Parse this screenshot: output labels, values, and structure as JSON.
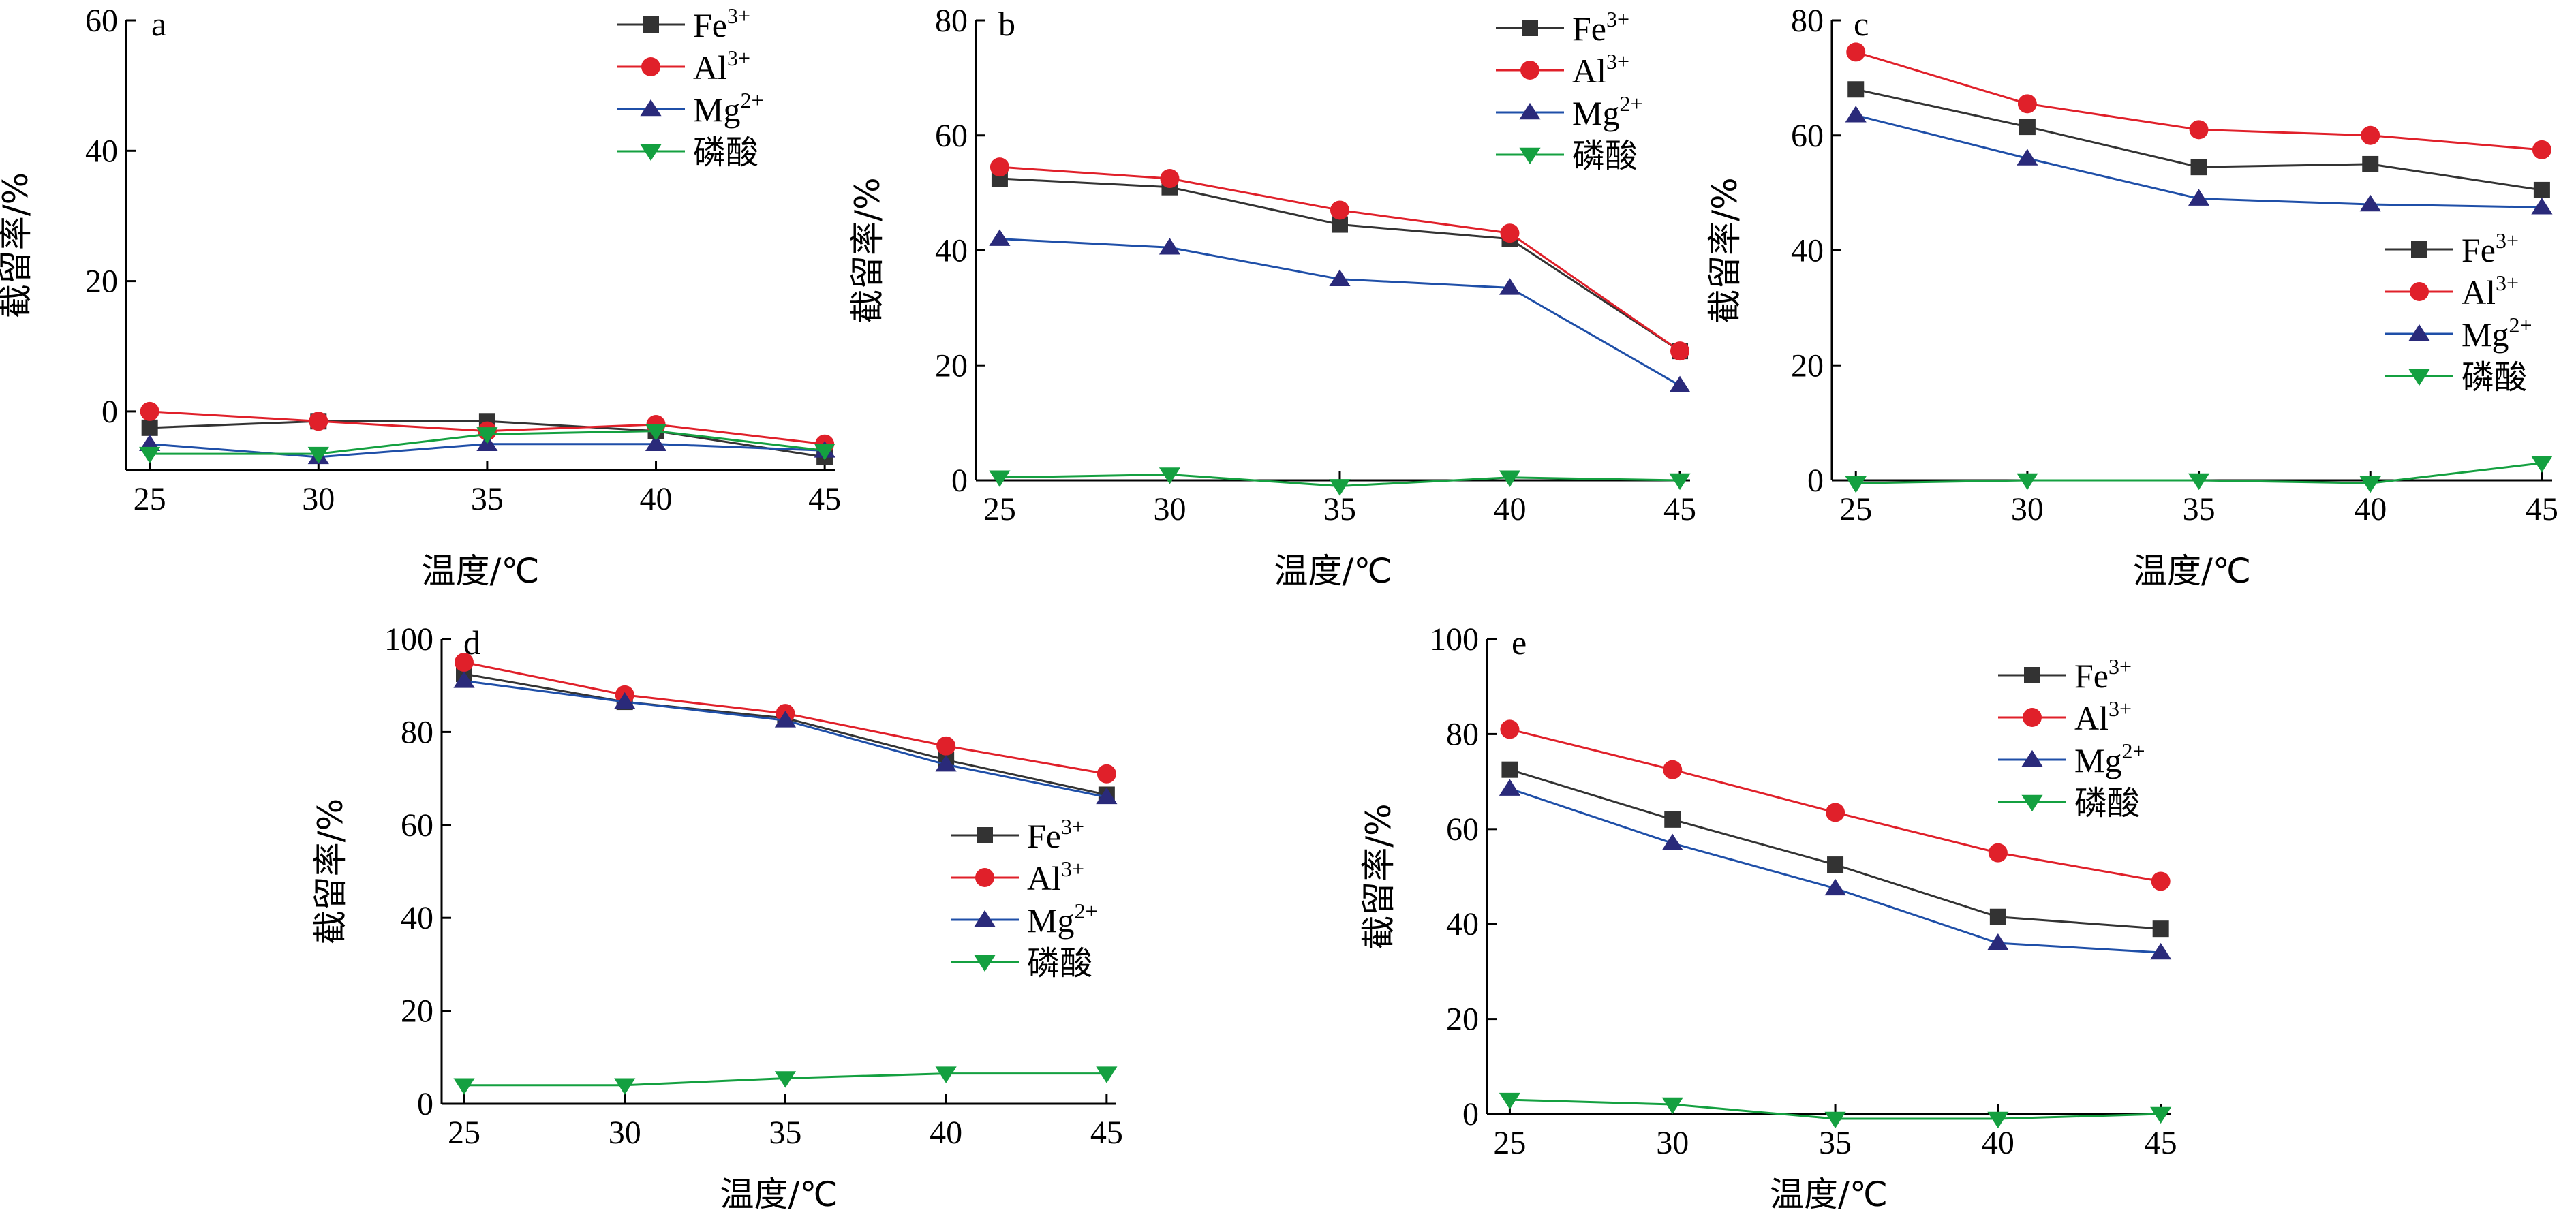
{
  "colors": {
    "Fe": "#333333",
    "Al": "#e0202a",
    "Mg": "#1f4fa8",
    "P": "#14a040",
    "MgMarker": "#2a2a7a",
    "PMarker": "#14a040"
  },
  "legend_labels": {
    "Fe": {
      "base": "Fe",
      "sup": "3+"
    },
    "Al": {
      "base": "Al",
      "sup": "3+"
    },
    "Mg": {
      "base": "Mg",
      "sup": "2+"
    },
    "P": {
      "base": "磷酸",
      "sup": ""
    }
  },
  "chart_data": [
    {
      "panel": "a",
      "type": "line",
      "x": [
        25,
        30,
        35,
        40,
        45
      ],
      "xlabel": "温度/℃",
      "ylabel": "截留率/%",
      "ylim": [
        -9,
        60
      ],
      "yticks": [
        0,
        20,
        40,
        60
      ],
      "yticklabels": [
        "0",
        "20",
        "40",
        "60"
      ],
      "xticklabels": [
        "25",
        "30",
        "35",
        "40",
        "45"
      ],
      "legend_position": "top-right",
      "series": [
        {
          "key": "Fe",
          "marker": "square",
          "values": [
            -2.5,
            -1.5,
            -1.5,
            -3,
            -7
          ]
        },
        {
          "key": "Al",
          "marker": "circle",
          "values": [
            0,
            -1.5,
            -3,
            -2,
            -5
          ]
        },
        {
          "key": "Mg",
          "marker": "triangle-up",
          "values": [
            -5,
            -7,
            -5,
            -5,
            -6
          ]
        },
        {
          "key": "P",
          "marker": "triangle-down",
          "values": [
            -6.5,
            -6.5,
            -3.5,
            -3,
            -6
          ]
        }
      ]
    },
    {
      "panel": "b",
      "type": "line",
      "x": [
        25,
        30,
        35,
        40,
        45
      ],
      "xlabel": "温度/℃",
      "ylabel": "截留率/%",
      "ylim": [
        0,
        80
      ],
      "yticks": [
        0,
        20,
        40,
        60,
        80
      ],
      "yticklabels": [
        "0",
        "20",
        "40",
        "60",
        "80"
      ],
      "xticklabels": [
        "25",
        "30",
        "35",
        "40",
        "45"
      ],
      "legend_position": "top-right",
      "series": [
        {
          "key": "Fe",
          "marker": "square",
          "values": [
            52.5,
            51,
            44.5,
            42,
            22.5
          ]
        },
        {
          "key": "Al",
          "marker": "circle",
          "values": [
            54.5,
            52.5,
            47,
            43,
            22.5
          ]
        },
        {
          "key": "Mg",
          "marker": "triangle-up",
          "values": [
            42,
            40.5,
            35,
            33.5,
            16.5
          ]
        },
        {
          "key": "P",
          "marker": "triangle-down",
          "values": [
            0.5,
            1,
            -1,
            0.5,
            0
          ]
        }
      ]
    },
    {
      "panel": "c",
      "type": "line",
      "x": [
        25,
        30,
        35,
        40,
        45
      ],
      "xlabel": "温度/℃",
      "ylabel": "截留率/%",
      "ylim": [
        0,
        80
      ],
      "yticks": [
        0,
        20,
        40,
        60,
        80
      ],
      "yticklabels": [
        "0",
        "20",
        "40",
        "60",
        "80"
      ],
      "xticklabels": [
        "25",
        "30",
        "35",
        "40",
        "45"
      ],
      "legend_position": "right",
      "series": [
        {
          "key": "Fe",
          "marker": "square",
          "values": [
            68,
            61.5,
            54.5,
            55,
            50.5
          ]
        },
        {
          "key": "Al",
          "marker": "circle",
          "values": [
            74.5,
            65.5,
            61,
            60,
            57.5
          ]
        },
        {
          "key": "Mg",
          "marker": "triangle-up",
          "values": [
            63.5,
            56,
            49,
            48,
            47.5
          ]
        },
        {
          "key": "P",
          "marker": "triangle-down",
          "values": [
            -0.5,
            0,
            0,
            -0.5,
            3
          ]
        }
      ]
    },
    {
      "panel": "d",
      "type": "line",
      "x": [
        25,
        30,
        35,
        40,
        45
      ],
      "xlabel": "温度/℃",
      "ylabel": "截留率/%",
      "ylim": [
        0,
        100
      ],
      "yticks": [
        0,
        20,
        40,
        60,
        80,
        100
      ],
      "yticklabels": [
        "0",
        "20",
        "40",
        "60",
        "80",
        "100"
      ],
      "xticklabels": [
        "25",
        "30",
        "35",
        "40",
        "45"
      ],
      "legend_position": "right",
      "series": [
        {
          "key": "Fe",
          "marker": "square",
          "values": [
            92.5,
            86.5,
            83,
            74,
            66.5
          ]
        },
        {
          "key": "Al",
          "marker": "circle",
          "values": [
            95,
            88,
            84,
            77,
            71
          ]
        },
        {
          "key": "Mg",
          "marker": "triangle-up",
          "values": [
            91,
            86.5,
            82.5,
            73,
            66
          ]
        },
        {
          "key": "P",
          "marker": "triangle-down",
          "values": [
            4,
            4,
            5.5,
            6.5,
            6.5
          ]
        }
      ]
    },
    {
      "panel": "e",
      "type": "line",
      "x": [
        25,
        30,
        35,
        40,
        45
      ],
      "xlabel": "温度/℃",
      "ylabel": "截留率/%",
      "ylim": [
        0,
        100
      ],
      "yticks": [
        0,
        20,
        40,
        60,
        80,
        100
      ],
      "yticklabels": [
        "0",
        "20",
        "40",
        "60",
        "80",
        "100"
      ],
      "xticklabels": [
        "25",
        "30",
        "35",
        "40",
        "45"
      ],
      "legend_position": "top-right",
      "series": [
        {
          "key": "Fe",
          "marker": "square",
          "values": [
            72.5,
            62,
            52.5,
            41.5,
            39
          ]
        },
        {
          "key": "Al",
          "marker": "circle",
          "values": [
            81,
            72.5,
            63.5,
            55,
            49
          ]
        },
        {
          "key": "Mg",
          "marker": "triangle-up",
          "values": [
            68.5,
            57,
            47.5,
            36,
            34
          ]
        },
        {
          "key": "P",
          "marker": "triangle-down",
          "values": [
            3,
            2,
            -1,
            -1,
            0
          ]
        }
      ]
    }
  ]
}
